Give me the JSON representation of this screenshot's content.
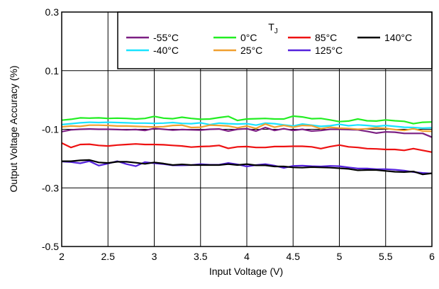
{
  "chart_data": {
    "type": "line",
    "title": "",
    "xlabel": "Input Voltage (V)",
    "ylabel": "Output Voltage Accuracy (%)",
    "xlim": [
      2,
      6
    ],
    "ylim": [
      -0.5,
      0.3
    ],
    "xticks": [
      2,
      2.5,
      3,
      3.5,
      4,
      4.5,
      5,
      5.5,
      6
    ],
    "xtick_labels": [
      "2",
      "2.5",
      "3",
      "3.5",
      "4",
      "4.5",
      "5",
      "5.5",
      "6"
    ],
    "yticks": [
      -0.5,
      -0.3,
      -0.1,
      0.1,
      0.3
    ],
    "ytick_labels": [
      "-0.5",
      "-0.3",
      "-0.1",
      "0.1",
      "0.3"
    ],
    "grid": true,
    "legend": {
      "title": "T",
      "title_subscript": "J",
      "placement": "top-right",
      "columns": [
        [
          "-55°C",
          "-40°C"
        ],
        [
          "0°C",
          "25°C"
        ],
        [
          "85°C",
          "125°C"
        ],
        [
          "140°C"
        ]
      ]
    },
    "x": [
      2,
      2.1,
      2.2,
      2.3,
      2.4,
      2.5,
      2.6,
      2.7,
      2.8,
      2.9,
      3,
      3.1,
      3.2,
      3.3,
      3.4,
      3.5,
      3.6,
      3.7,
      3.8,
      3.9,
      4,
      4.1,
      4.2,
      4.3,
      4.4,
      4.5,
      4.6,
      4.7,
      4.8,
      4.9,
      5,
      5.1,
      5.2,
      5.3,
      5.4,
      5.5,
      5.6,
      5.7,
      5.8,
      5.9,
      6
    ],
    "series": [
      {
        "name": "-55°C",
        "color": "#7b1f82",
        "values": [
          -0.108,
          -0.102,
          -0.1,
          -0.099,
          -0.1,
          -0.1,
          -0.101,
          -0.102,
          -0.101,
          -0.104,
          -0.097,
          -0.1,
          -0.103,
          -0.101,
          -0.102,
          -0.103,
          -0.1,
          -0.099,
          -0.106,
          -0.1,
          -0.098,
          -0.106,
          -0.094,
          -0.104,
          -0.098,
          -0.104,
          -0.1,
          -0.106,
          -0.104,
          -0.1,
          -0.1,
          -0.101,
          -0.102,
          -0.107,
          -0.113,
          -0.109,
          -0.11,
          -0.114,
          -0.114,
          -0.114,
          -0.127
        ]
      },
      {
        "name": "-40°C",
        "color": "#19e3ff",
        "values": [
          -0.084,
          -0.081,
          -0.078,
          -0.076,
          -0.077,
          -0.076,
          -0.077,
          -0.078,
          -0.079,
          -0.079,
          -0.08,
          -0.079,
          -0.077,
          -0.08,
          -0.081,
          -0.078,
          -0.084,
          -0.079,
          -0.081,
          -0.082,
          -0.081,
          -0.086,
          -0.079,
          -0.081,
          -0.085,
          -0.089,
          -0.082,
          -0.086,
          -0.09,
          -0.088,
          -0.083,
          -0.088,
          -0.085,
          -0.087,
          -0.09,
          -0.087,
          -0.09,
          -0.093,
          -0.094,
          -0.096,
          -0.095
        ]
      },
      {
        "name": "0°C",
        "color": "#22ee22",
        "values": [
          -0.069,
          -0.066,
          -0.061,
          -0.062,
          -0.061,
          -0.063,
          -0.062,
          -0.063,
          -0.065,
          -0.063,
          -0.056,
          -0.062,
          -0.064,
          -0.059,
          -0.063,
          -0.066,
          -0.065,
          -0.06,
          -0.056,
          -0.07,
          -0.065,
          -0.064,
          -0.063,
          -0.065,
          -0.065,
          -0.055,
          -0.058,
          -0.064,
          -0.063,
          -0.068,
          -0.074,
          -0.072,
          -0.065,
          -0.071,
          -0.072,
          -0.068,
          -0.071,
          -0.073,
          -0.081,
          -0.076,
          -0.075
        ]
      },
      {
        "name": "25°C",
        "color": "#f0a030",
        "values": [
          -0.092,
          -0.089,
          -0.09,
          -0.086,
          -0.086,
          -0.087,
          -0.089,
          -0.089,
          -0.09,
          -0.091,
          -0.092,
          -0.091,
          -0.087,
          -0.086,
          -0.094,
          -0.093,
          -0.086,
          -0.087,
          -0.089,
          -0.095,
          -0.089,
          -0.097,
          -0.082,
          -0.093,
          -0.087,
          -0.093,
          -0.087,
          -0.088,
          -0.098,
          -0.093,
          -0.096,
          -0.097,
          -0.1,
          -0.098,
          -0.095,
          -0.097,
          -0.101,
          -0.104,
          -0.098,
          -0.106,
          -0.107
        ]
      },
      {
        "name": "85°C",
        "color": "#ee1111",
        "values": [
          -0.147,
          -0.162,
          -0.152,
          -0.151,
          -0.155,
          -0.157,
          -0.154,
          -0.152,
          -0.15,
          -0.152,
          -0.152,
          -0.153,
          -0.155,
          -0.157,
          -0.161,
          -0.159,
          -0.158,
          -0.155,
          -0.165,
          -0.16,
          -0.159,
          -0.162,
          -0.162,
          -0.159,
          -0.159,
          -0.158,
          -0.158,
          -0.16,
          -0.166,
          -0.159,
          -0.154,
          -0.16,
          -0.162,
          -0.166,
          -0.167,
          -0.169,
          -0.169,
          -0.172,
          -0.166,
          -0.172,
          -0.178
        ]
      },
      {
        "name": "125°C",
        "color": "#5522dd",
        "values": [
          -0.21,
          -0.212,
          -0.216,
          -0.209,
          -0.224,
          -0.217,
          -0.209,
          -0.219,
          -0.226,
          -0.212,
          -0.216,
          -0.219,
          -0.223,
          -0.223,
          -0.222,
          -0.219,
          -0.221,
          -0.221,
          -0.215,
          -0.22,
          -0.227,
          -0.222,
          -0.219,
          -0.224,
          -0.232,
          -0.225,
          -0.224,
          -0.226,
          -0.227,
          -0.225,
          -0.226,
          -0.23,
          -0.234,
          -0.234,
          -0.236,
          -0.236,
          -0.238,
          -0.241,
          -0.246,
          -0.249,
          -0.251
        ]
      },
      {
        "name": "140°C",
        "color": "#000000",
        "values": [
          -0.209,
          -0.209,
          -0.206,
          -0.205,
          -0.213,
          -0.215,
          -0.211,
          -0.211,
          -0.214,
          -0.218,
          -0.213,
          -0.217,
          -0.222,
          -0.22,
          -0.222,
          -0.222,
          -0.222,
          -0.222,
          -0.219,
          -0.222,
          -0.219,
          -0.223,
          -0.223,
          -0.227,
          -0.227,
          -0.23,
          -0.231,
          -0.229,
          -0.23,
          -0.231,
          -0.233,
          -0.235,
          -0.24,
          -0.239,
          -0.239,
          -0.242,
          -0.245,
          -0.246,
          -0.244,
          -0.254,
          -0.25
        ]
      }
    ]
  }
}
